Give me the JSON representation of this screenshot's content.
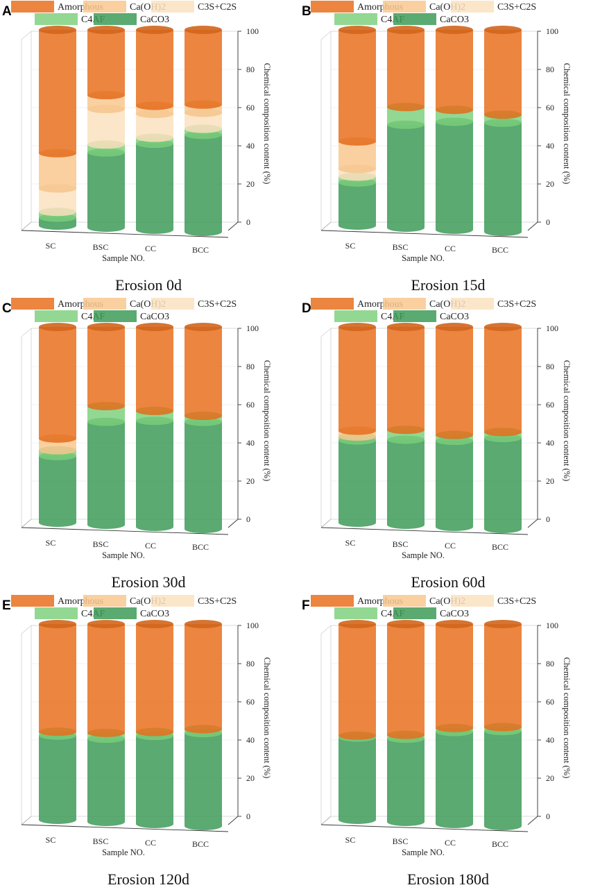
{
  "legend": {
    "amorphous_color": "#E8701F",
    "caoh2_color": "#F9C88F",
    "c3s_color": "#FCE2C0",
    "c4af_color": "#7FD17F",
    "caco3_color": "#3D9B58"
  },
  "chart_data": [
    {
      "panel": "A",
      "caption": "Erosion 0d",
      "type": "bar",
      "title": "",
      "xlabel": "Sample NO.",
      "ylabel": "Chemical composition content (%)",
      "ylim": [
        0,
        100
      ],
      "yticks": [
        "0",
        "20",
        "40",
        "60",
        "80",
        "100"
      ],
      "categories": [
        "SC",
        "BSC",
        "CC",
        "BCC"
      ],
      "series": [
        {
          "name": "CaCO3",
          "color": "#3D9B58",
          "values": [
            4,
            38,
            43,
            48
          ]
        },
        {
          "name": "C4AF",
          "color": "#7FD17F",
          "values": [
            3,
            4,
            3,
            3
          ]
        },
        {
          "name": "C3S+C2S",
          "color": "#FCE2C0",
          "values": [
            12,
            18,
            12,
            8
          ]
        },
        {
          "name": "Ca(OH)2",
          "color": "#F9C88F",
          "values": [
            18,
            7,
            4,
            4
          ]
        },
        {
          "name": "Amorphous",
          "color": "#E8701F",
          "values": [
            63,
            33,
            38,
            37
          ]
        }
      ]
    },
    {
      "panel": "B",
      "caption": "Erosion 15d",
      "type": "bar",
      "title": "",
      "xlabel": "Sample NO.",
      "ylabel": "Chemical composition content (%)",
      "ylim": [
        0,
        100
      ],
      "yticks": [
        "0",
        "20",
        "40",
        "60",
        "80",
        "100"
      ],
      "categories": [
        "SC",
        "BSC",
        "CC",
        "BCC"
      ],
      "series": [
        {
          "name": "CaCO3",
          "color": "#3D9B58",
          "values": [
            22,
            52,
            54,
            54
          ]
        },
        {
          "name": "C4AF",
          "color": "#7FD17F",
          "values": [
            3,
            9,
            6,
            4
          ]
        },
        {
          "name": "C3S+C2S",
          "color": "#FCE2C0",
          "values": [
            4,
            0,
            0,
            0
          ]
        },
        {
          "name": "Ca(OH)2",
          "color": "#F9C88F",
          "values": [
            14,
            0,
            0,
            0
          ]
        },
        {
          "name": "Amorphous",
          "color": "#E8701F",
          "values": [
            57,
            39,
            40,
            42
          ]
        }
      ]
    },
    {
      "panel": "C",
      "caption": "Erosion 30d",
      "type": "bar",
      "title": "",
      "xlabel": "Sample NO.",
      "ylabel": "Chemical composition content (%)",
      "ylim": [
        0,
        100
      ],
      "yticks": [
        "0",
        "20",
        "40",
        "60",
        "80",
        "100"
      ],
      "categories": [
        "SC",
        "BSC",
        "CC",
        "BCC"
      ],
      "series": [
        {
          "name": "CaCO3",
          "color": "#3D9B58",
          "values": [
            34,
            52,
            53,
            53
          ]
        },
        {
          "name": "C4AF",
          "color": "#7FD17F",
          "values": [
            3,
            8,
            5,
            3
          ]
        },
        {
          "name": "C3S+C2S",
          "color": "#FCE2C0",
          "values": [
            0,
            0,
            0,
            0
          ]
        },
        {
          "name": "Ca(OH)2",
          "color": "#F9C88F",
          "values": [
            6,
            0,
            0,
            0
          ]
        },
        {
          "name": "Amorphous",
          "color": "#E8701F",
          "values": [
            57,
            40,
            42,
            44
          ]
        }
      ]
    },
    {
      "panel": "D",
      "caption": "Erosion 60d",
      "type": "bar",
      "title": "",
      "xlabel": "Sample NO.",
      "ylabel": "Chemical composition content (%)",
      "ylim": [
        0,
        100
      ],
      "yticks": [
        "0",
        "20",
        "40",
        "60",
        "80",
        "100"
      ],
      "categories": [
        "SC",
        "BSC",
        "CC",
        "BCC"
      ],
      "series": [
        {
          "name": "CaCO3",
          "color": "#3D9B58",
          "values": [
            42,
            43,
            43,
            45
          ]
        },
        {
          "name": "C4AF",
          "color": "#7FD17F",
          "values": [
            2,
            5,
            3,
            3
          ]
        },
        {
          "name": "C3S+C2S",
          "color": "#FCE2C0",
          "values": [
            0,
            0,
            0,
            0
          ]
        },
        {
          "name": "Ca(OH)2",
          "color": "#F9C88F",
          "values": [
            3,
            0,
            0,
            0
          ]
        },
        {
          "name": "Amorphous",
          "color": "#E8701F",
          "values": [
            53,
            52,
            54,
            52
          ]
        }
      ]
    },
    {
      "panel": "E",
      "caption": "Erosion 120d",
      "type": "bar",
      "title": "",
      "xlabel": "Sample NO.",
      "ylabel": "Chemical composition content (%)",
      "ylim": [
        0,
        100
      ],
      "yticks": [
        "0",
        "20",
        "40",
        "60",
        "80",
        "100"
      ],
      "categories": [
        "SC",
        "BSC",
        "CC",
        "BCC"
      ],
      "series": [
        {
          "name": "CaCO3",
          "color": "#3D9B58",
          "values": [
            43,
            42,
            44,
            46
          ]
        },
        {
          "name": "C4AF",
          "color": "#7FD17F",
          "values": [
            2,
            3,
            2,
            2
          ]
        },
        {
          "name": "C3S+C2S",
          "color": "#FCE2C0",
          "values": [
            0,
            0,
            0,
            0
          ]
        },
        {
          "name": "Ca(OH)2",
          "color": "#F9C88F",
          "values": [
            0,
            0,
            0,
            0
          ]
        },
        {
          "name": "Amorphous",
          "color": "#E8701F",
          "values": [
            55,
            55,
            54,
            52
          ]
        }
      ]
    },
    {
      "panel": "F",
      "caption": "Erosion 180d",
      "type": "bar",
      "title": "",
      "xlabel": "Sample NO.",
      "ylabel": "Chemical composition content (%)",
      "ylim": [
        0,
        100
      ],
      "yticks": [
        "0",
        "20",
        "40",
        "60",
        "80",
        "100"
      ],
      "categories": [
        "SC",
        "BSC",
        "CC",
        "BCC"
      ],
      "series": [
        {
          "name": "CaCO3",
          "color": "#3D9B58",
          "values": [
            42,
            42,
            46,
            47
          ]
        },
        {
          "name": "C4AF",
          "color": "#7FD17F",
          "values": [
            1,
            2,
            2,
            2
          ]
        },
        {
          "name": "C3S+C2S",
          "color": "#FCE2C0",
          "values": [
            0,
            0,
            0,
            0
          ]
        },
        {
          "name": "Ca(OH)2",
          "color": "#F9C88F",
          "values": [
            0,
            0,
            0,
            0
          ]
        },
        {
          "name": "Amorphous",
          "color": "#E8701F",
          "values": [
            57,
            56,
            52,
            51
          ]
        }
      ]
    }
  ],
  "legend_order": [
    "Amorphous",
    "Ca(OH)2",
    "C3S+C2S",
    "C4AF",
    "CaCO3"
  ]
}
